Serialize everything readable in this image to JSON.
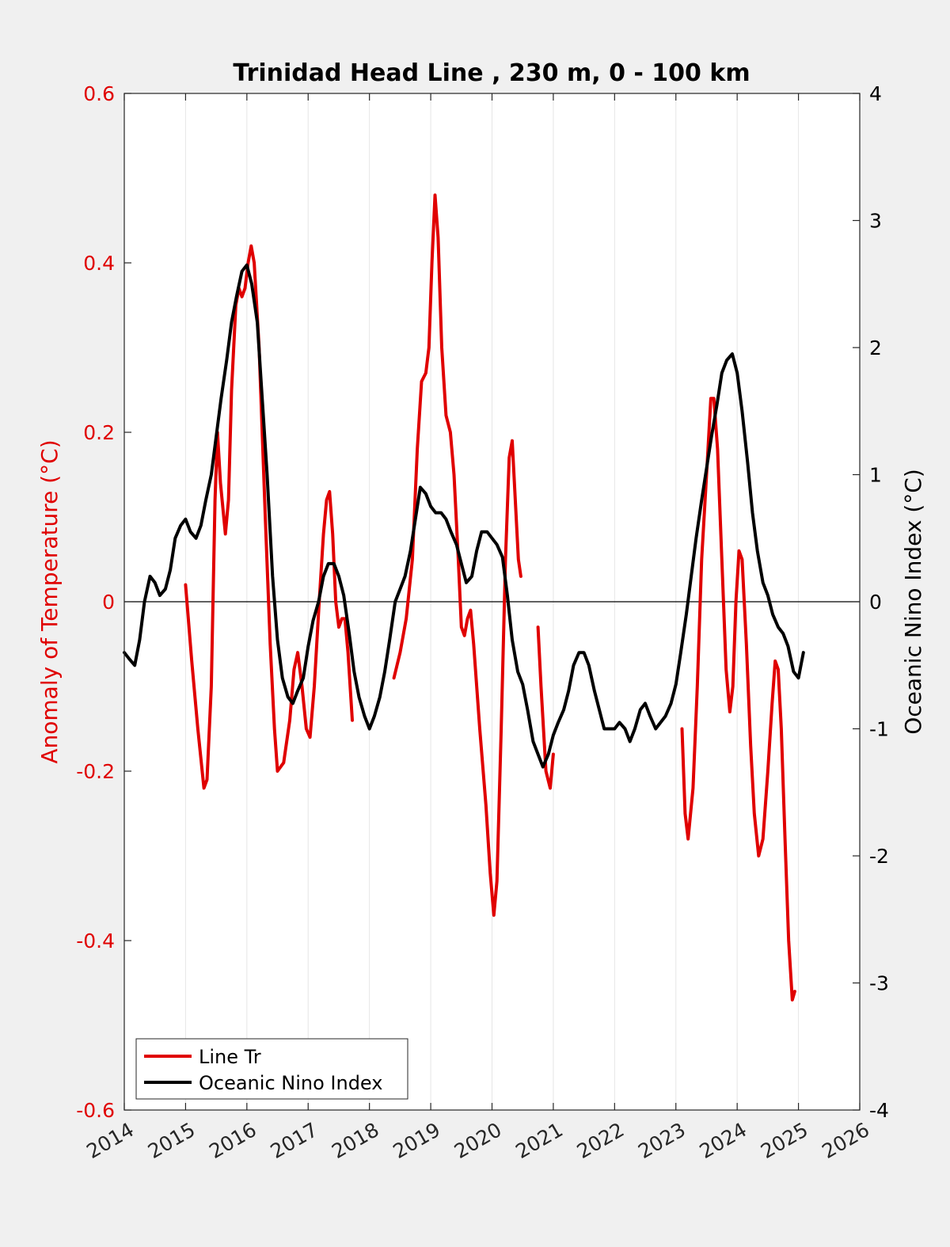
{
  "chart_data": {
    "type": "line",
    "title": "Trinidad Head Line , 230 m, 0 - 100 km",
    "xlabel": "",
    "ylabel_left": "Anomaly of Temperature (°C)",
    "ylabel_right": "Oceanic Nino Index (°C)",
    "xlim": [
      2014,
      2026
    ],
    "ylim_left": [
      -0.6,
      0.6
    ],
    "ylim_right": [
      -4,
      4
    ],
    "x_ticks": [
      "2014",
      "2015",
      "2016",
      "2017",
      "2018",
      "2019",
      "2020",
      "2021",
      "2022",
      "2023",
      "2024",
      "2025",
      "2026"
    ],
    "y_ticks_left": [
      "-0.6",
      "-0.4",
      "-0.2",
      "0",
      "0.2",
      "0.4",
      "0.6"
    ],
    "y_ticks_right": [
      "-4",
      "-3",
      "-2",
      "-1",
      "0",
      "1",
      "2",
      "3",
      "4"
    ],
    "grid": "vertical",
    "zero_line": true,
    "legend_position": "bottom-left",
    "colors": {
      "line_tr": "#e00000",
      "oni": "#000000",
      "left_axis": "#e00000"
    },
    "series": [
      {
        "name": "Line Tr",
        "axis": "left",
        "segments": [
          [
            [
              2015.0,
              0.02
            ],
            [
              2015.1,
              -0.07
            ],
            [
              2015.2,
              -0.15
            ],
            [
              2015.3,
              -0.22
            ],
            [
              2015.35,
              -0.21
            ],
            [
              2015.42,
              -0.1
            ],
            [
              2015.48,
              0.12
            ],
            [
              2015.52,
              0.2
            ],
            [
              2015.57,
              0.14
            ],
            [
              2015.65,
              0.08
            ],
            [
              2015.7,
              0.12
            ],
            [
              2015.75,
              0.25
            ],
            [
              2015.82,
              0.35
            ],
            [
              2015.87,
              0.37
            ],
            [
              2015.92,
              0.36
            ],
            [
              2015.97,
              0.37
            ],
            [
              2016.02,
              0.4
            ],
            [
              2016.07,
              0.42
            ],
            [
              2016.12,
              0.4
            ],
            [
              2016.2,
              0.3
            ],
            [
              2016.3,
              0.1
            ],
            [
              2016.38,
              -0.05
            ],
            [
              2016.45,
              -0.15
            ],
            [
              2016.5,
              -0.2
            ],
            [
              2016.6,
              -0.19
            ],
            [
              2016.7,
              -0.14
            ],
            [
              2016.77,
              -0.08
            ],
            [
              2016.83,
              -0.06
            ],
            [
              2016.9,
              -0.1
            ],
            [
              2016.97,
              -0.15
            ],
            [
              2017.03,
              -0.16
            ],
            [
              2017.1,
              -0.1
            ],
            [
              2017.18,
              0.0
            ],
            [
              2017.25,
              0.08
            ],
            [
              2017.3,
              0.12
            ],
            [
              2017.35,
              0.13
            ],
            [
              2017.4,
              0.08
            ],
            [
              2017.45,
              0.0
            ],
            [
              2017.5,
              -0.03
            ],
            [
              2017.55,
              -0.02
            ],
            [
              2017.6,
              -0.02
            ],
            [
              2017.65,
              -0.06
            ],
            [
              2017.72,
              -0.14
            ]
          ],
          [
            [
              2018.4,
              -0.09
            ],
            [
              2018.5,
              -0.06
            ],
            [
              2018.6,
              -0.02
            ],
            [
              2018.7,
              0.05
            ],
            [
              2018.78,
              0.18
            ],
            [
              2018.85,
              0.26
            ],
            [
              2018.92,
              0.27
            ],
            [
              2018.97,
              0.3
            ],
            [
              2019.02,
              0.4
            ],
            [
              2019.07,
              0.48
            ],
            [
              2019.12,
              0.43
            ],
            [
              2019.18,
              0.3
            ],
            [
              2019.25,
              0.22
            ],
            [
              2019.32,
              0.2
            ],
            [
              2019.38,
              0.15
            ],
            [
              2019.45,
              0.05
            ],
            [
              2019.5,
              -0.03
            ],
            [
              2019.55,
              -0.04
            ],
            [
              2019.6,
              -0.02
            ],
            [
              2019.65,
              -0.01
            ],
            [
              2019.7,
              -0.05
            ],
            [
              2019.8,
              -0.15
            ],
            [
              2019.9,
              -0.24
            ],
            [
              2019.97,
              -0.32
            ],
            [
              2020.03,
              -0.37
            ],
            [
              2020.08,
              -0.33
            ],
            [
              2020.15,
              -0.15
            ],
            [
              2020.22,
              0.05
            ],
            [
              2020.28,
              0.17
            ],
            [
              2020.33,
              0.19
            ],
            [
              2020.38,
              0.12
            ],
            [
              2020.43,
              0.05
            ],
            [
              2020.47,
              0.03
            ]
          ],
          [
            [
              2020.75,
              -0.03
            ],
            [
              2020.8,
              -0.1
            ],
            [
              2020.88,
              -0.2
            ],
            [
              2020.95,
              -0.22
            ],
            [
              2021.0,
              -0.18
            ]
          ],
          [
            [
              2023.1,
              -0.15
            ],
            [
              2023.15,
              -0.25
            ],
            [
              2023.2,
              -0.28
            ],
            [
              2023.28,
              -0.22
            ],
            [
              2023.35,
              -0.1
            ],
            [
              2023.42,
              0.05
            ],
            [
              2023.5,
              0.15
            ],
            [
              2023.57,
              0.24
            ],
            [
              2023.62,
              0.24
            ],
            [
              2023.68,
              0.18
            ],
            [
              2023.75,
              0.05
            ],
            [
              2023.82,
              -0.08
            ],
            [
              2023.88,
              -0.13
            ],
            [
              2023.93,
              -0.1
            ],
            [
              2023.98,
              0.0
            ],
            [
              2024.03,
              0.06
            ],
            [
              2024.08,
              0.05
            ],
            [
              2024.15,
              -0.05
            ],
            [
              2024.22,
              -0.17
            ],
            [
              2024.28,
              -0.25
            ],
            [
              2024.35,
              -0.3
            ],
            [
              2024.42,
              -0.28
            ],
            [
              2024.5,
              -0.2
            ],
            [
              2024.57,
              -0.12
            ],
            [
              2024.62,
              -0.07
            ],
            [
              2024.67,
              -0.08
            ],
            [
              2024.72,
              -0.15
            ],
            [
              2024.78,
              -0.28
            ],
            [
              2024.84,
              -0.4
            ],
            [
              2024.9,
              -0.47
            ],
            [
              2024.94,
              -0.46
            ]
          ]
        ]
      },
      {
        "name": "Oceanic Nino Index",
        "axis": "right",
        "segments": [
          [
            [
              2014.0,
              -0.4
            ],
            [
              2014.08,
              -0.45
            ],
            [
              2014.17,
              -0.5
            ],
            [
              2014.25,
              -0.3
            ],
            [
              2014.33,
              0.0
            ],
            [
              2014.42,
              0.2
            ],
            [
              2014.5,
              0.15
            ],
            [
              2014.58,
              0.05
            ],
            [
              2014.67,
              0.1
            ],
            [
              2014.75,
              0.25
            ],
            [
              2014.83,
              0.5
            ],
            [
              2014.92,
              0.6
            ],
            [
              2015.0,
              0.65
            ],
            [
              2015.08,
              0.55
            ],
            [
              2015.17,
              0.5
            ],
            [
              2015.25,
              0.6
            ],
            [
              2015.33,
              0.8
            ],
            [
              2015.42,
              1.0
            ],
            [
              2015.5,
              1.3
            ],
            [
              2015.58,
              1.6
            ],
            [
              2015.67,
              1.9
            ],
            [
              2015.75,
              2.2
            ],
            [
              2015.83,
              2.4
            ],
            [
              2015.92,
              2.6
            ],
            [
              2016.0,
              2.65
            ],
            [
              2016.08,
              2.5
            ],
            [
              2016.17,
              2.2
            ],
            [
              2016.25,
              1.6
            ],
            [
              2016.33,
              1.0
            ],
            [
              2016.42,
              0.2
            ],
            [
              2016.5,
              -0.3
            ],
            [
              2016.58,
              -0.6
            ],
            [
              2016.67,
              -0.75
            ],
            [
              2016.75,
              -0.8
            ],
            [
              2016.83,
              -0.7
            ],
            [
              2016.92,
              -0.6
            ],
            [
              2017.0,
              -0.35
            ],
            [
              2017.08,
              -0.15
            ],
            [
              2017.17,
              0.0
            ],
            [
              2017.25,
              0.2
            ],
            [
              2017.33,
              0.3
            ],
            [
              2017.42,
              0.3
            ],
            [
              2017.5,
              0.2
            ],
            [
              2017.58,
              0.05
            ],
            [
              2017.67,
              -0.25
            ],
            [
              2017.75,
              -0.55
            ],
            [
              2017.83,
              -0.75
            ],
            [
              2017.92,
              -0.9
            ],
            [
              2018.0,
              -1.0
            ],
            [
              2018.08,
              -0.9
            ],
            [
              2018.17,
              -0.75
            ],
            [
              2018.25,
              -0.55
            ],
            [
              2018.33,
              -0.3
            ],
            [
              2018.42,
              0.0
            ],
            [
              2018.5,
              0.1
            ],
            [
              2018.58,
              0.2
            ],
            [
              2018.67,
              0.4
            ],
            [
              2018.75,
              0.65
            ],
            [
              2018.83,
              0.9
            ],
            [
              2018.92,
              0.85
            ],
            [
              2019.0,
              0.75
            ],
            [
              2019.08,
              0.7
            ],
            [
              2019.17,
              0.7
            ],
            [
              2019.25,
              0.65
            ],
            [
              2019.33,
              0.55
            ],
            [
              2019.42,
              0.45
            ],
            [
              2019.5,
              0.3
            ],
            [
              2019.58,
              0.15
            ],
            [
              2019.67,
              0.2
            ],
            [
              2019.75,
              0.4
            ],
            [
              2019.83,
              0.55
            ],
            [
              2019.92,
              0.55
            ],
            [
              2020.0,
              0.5
            ],
            [
              2020.08,
              0.45
            ],
            [
              2020.17,
              0.35
            ],
            [
              2020.25,
              0.05
            ],
            [
              2020.33,
              -0.3
            ],
            [
              2020.42,
              -0.55
            ],
            [
              2020.5,
              -0.65
            ],
            [
              2020.58,
              -0.85
            ],
            [
              2020.67,
              -1.1
            ],
            [
              2020.75,
              -1.2
            ],
            [
              2020.83,
              -1.3
            ],
            [
              2020.92,
              -1.2
            ],
            [
              2021.0,
              -1.05
            ],
            [
              2021.08,
              -0.95
            ],
            [
              2021.17,
              -0.85
            ],
            [
              2021.25,
              -0.7
            ],
            [
              2021.33,
              -0.5
            ],
            [
              2021.42,
              -0.4
            ],
            [
              2021.5,
              -0.4
            ],
            [
              2021.58,
              -0.5
            ],
            [
              2021.67,
              -0.7
            ],
            [
              2021.75,
              -0.85
            ],
            [
              2021.83,
              -1.0
            ],
            [
              2021.92,
              -1.0
            ],
            [
              2022.0,
              -1.0
            ],
            [
              2022.08,
              -0.95
            ],
            [
              2022.17,
              -1.0
            ],
            [
              2022.25,
              -1.1
            ],
            [
              2022.33,
              -1.0
            ],
            [
              2022.42,
              -0.85
            ],
            [
              2022.5,
              -0.8
            ],
            [
              2022.58,
              -0.9
            ],
            [
              2022.67,
              -1.0
            ],
            [
              2022.75,
              -0.95
            ],
            [
              2022.83,
              -0.9
            ],
            [
              2022.92,
              -0.8
            ],
            [
              2023.0,
              -0.65
            ],
            [
              2023.08,
              -0.4
            ],
            [
              2023.17,
              -0.1
            ],
            [
              2023.25,
              0.2
            ],
            [
              2023.33,
              0.5
            ],
            [
              2023.42,
              0.8
            ],
            [
              2023.5,
              1.05
            ],
            [
              2023.58,
              1.3
            ],
            [
              2023.67,
              1.55
            ],
            [
              2023.75,
              1.8
            ],
            [
              2023.83,
              1.9
            ],
            [
              2023.92,
              1.95
            ],
            [
              2024.0,
              1.8
            ],
            [
              2024.08,
              1.5
            ],
            [
              2024.17,
              1.1
            ],
            [
              2024.25,
              0.7
            ],
            [
              2024.33,
              0.4
            ],
            [
              2024.42,
              0.15
            ],
            [
              2024.5,
              0.05
            ],
            [
              2024.58,
              -0.1
            ],
            [
              2024.67,
              -0.2
            ],
            [
              2024.75,
              -0.25
            ],
            [
              2024.83,
              -0.35
            ],
            [
              2024.92,
              -0.55
            ],
            [
              2025.0,
              -0.6
            ],
            [
              2025.08,
              -0.4
            ]
          ]
        ]
      }
    ]
  }
}
